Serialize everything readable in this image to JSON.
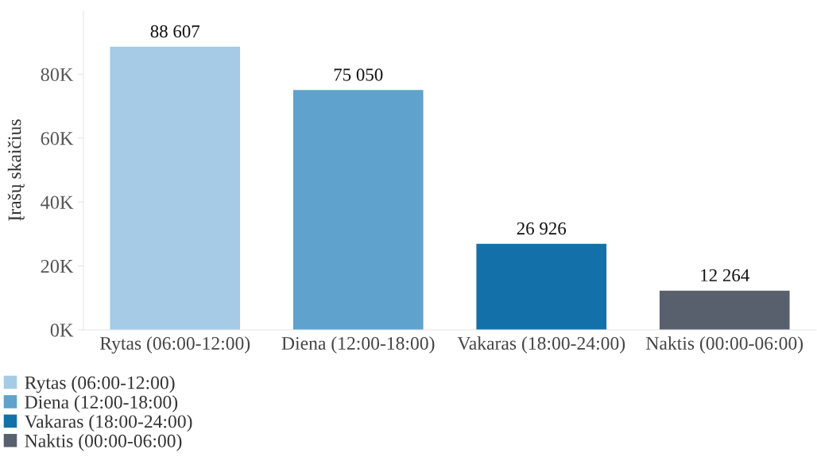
{
  "chart_data": {
    "type": "bar",
    "ylabel": "Įrašų skaičius",
    "categories": [
      "Rytas (06:00-12:00)",
      "Diena (12:00-18:00)",
      "Vakaras (18:00-24:00)",
      "Naktis (00:00-06:00)"
    ],
    "series": [
      {
        "name": "Rytas (06:00-12:00)",
        "color": "#a5cbe7",
        "values": [
          88607,
          null,
          null,
          null
        ]
      },
      {
        "name": "Diena (12:00-18:00)",
        "color": "#5ea2cd",
        "values": [
          null,
          75050,
          null,
          null
        ]
      },
      {
        "name": "Vakaras (18:00-24:00)",
        "color": "#1470a9",
        "values": [
          null,
          null,
          26926,
          null
        ]
      },
      {
        "name": "Naktis (00:00-06:00)",
        "color": "#585f6d",
        "values": [
          null,
          null,
          null,
          12264
        ]
      }
    ],
    "value_labels": [
      "88 607",
      "75 050",
      "26 926",
      "12 264"
    ],
    "ylim": [
      0,
      100000
    ],
    "yticks": [
      {
        "value": 0,
        "label": "0K"
      },
      {
        "value": 20000,
        "label": "20K"
      },
      {
        "value": 40000,
        "label": "40K"
      },
      {
        "value": 60000,
        "label": "60K"
      },
      {
        "value": 80000,
        "label": "80K"
      }
    ],
    "grid": false,
    "legend": "bottom left"
  }
}
